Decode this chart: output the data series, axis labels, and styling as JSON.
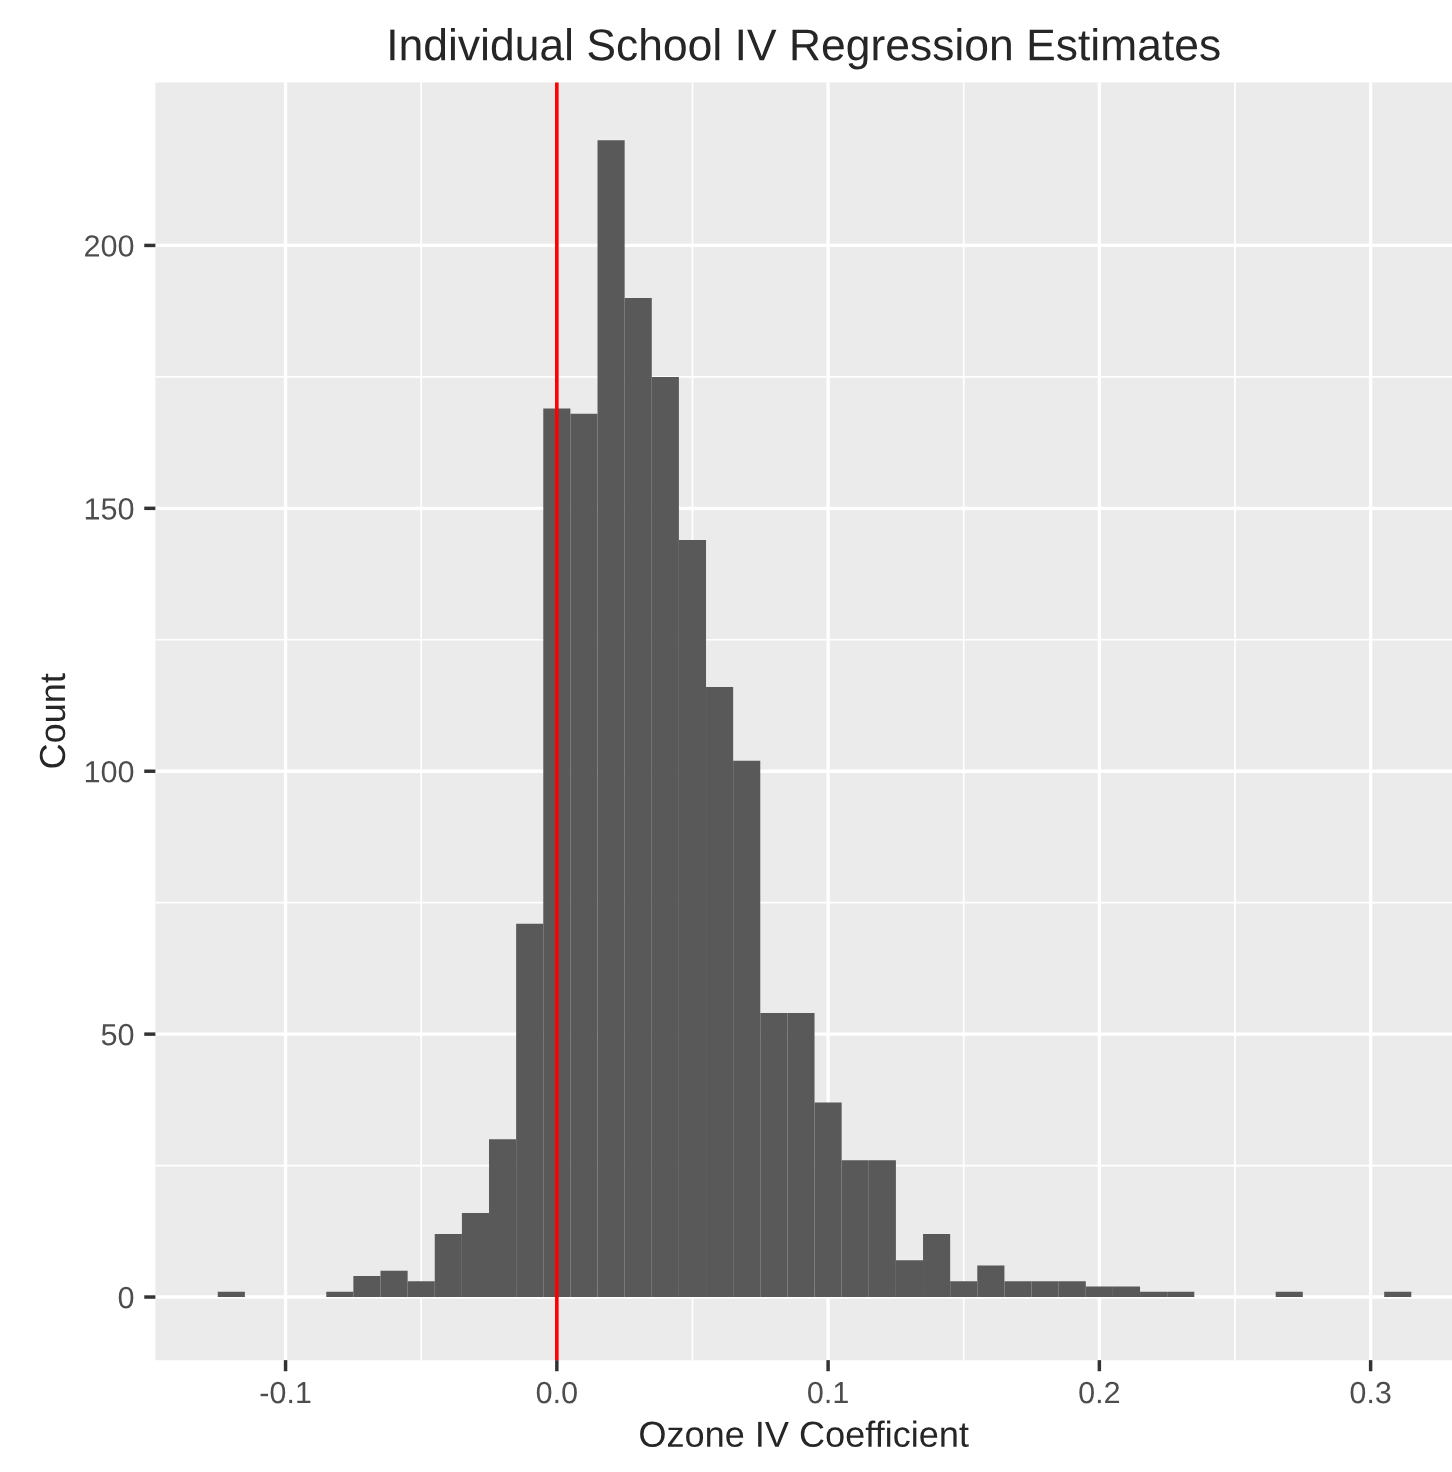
{
  "chart_data": {
    "type": "histogram",
    "title": "Individual School IV Regression Estimates",
    "xlabel": "Ozone IV Coefficient",
    "ylabel": "Count",
    "bins": [
      -0.125,
      -0.115,
      -0.105,
      -0.095,
      -0.085,
      -0.075,
      -0.065,
      -0.055,
      -0.045,
      -0.035,
      -0.025,
      -0.015,
      -0.005,
      0.005,
      0.015,
      0.025,
      0.035,
      0.045,
      0.055,
      0.065,
      0.075,
      0.085,
      0.095,
      0.105,
      0.115,
      0.125,
      0.135,
      0.145,
      0.155,
      0.165,
      0.175,
      0.185,
      0.195,
      0.205,
      0.215,
      0.225,
      0.235,
      0.245,
      0.255,
      0.265,
      0.275,
      0.285,
      0.295,
      0.305,
      0.315
    ],
    "values": [
      1,
      0,
      0,
      0,
      1,
      4,
      5,
      3,
      12,
      16,
      30,
      71,
      169,
      168,
      220,
      190,
      175,
      144,
      116,
      102,
      54,
      54,
      37,
      26,
      26,
      7,
      12,
      3,
      6,
      3,
      3,
      3,
      2,
      2,
      1,
      1,
      0,
      0,
      0,
      1,
      0,
      0,
      0,
      1
    ],
    "color": "#595959",
    "xlim": [
      -0.148,
      0.33
    ],
    "ylim": [
      -12,
      231
    ],
    "xticks": [
      -0.1,
      {
        "value": 0.0,
        "label": "0.0"
      },
      0.1,
      0.2,
      0.3
    ],
    "yticks": [
      0,
      50,
      100,
      150,
      200
    ],
    "grid": true,
    "ref_lines": [
      {
        "axis": "x",
        "value": 0,
        "color": "#ff0000"
      }
    ]
  }
}
